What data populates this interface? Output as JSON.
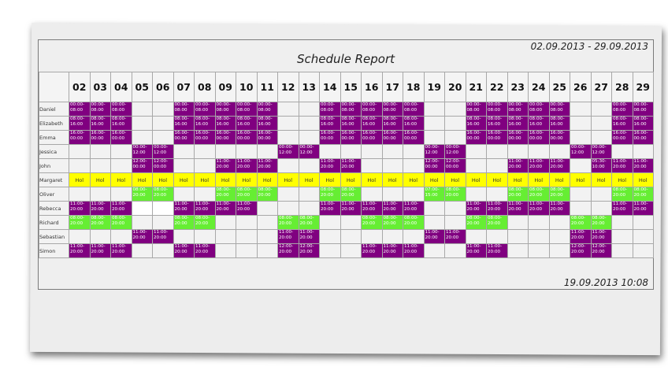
{
  "report": {
    "date_range": "02.09.2013 - 29.09.2013",
    "title": "Schedule Report",
    "generated": "19.09.2013 10:08"
  },
  "colors": {
    "shift": "#800080",
    "alt_shift": "#66ee33",
    "holiday": "#ffff00",
    "empty": "#f2f2f2"
  },
  "days": [
    "02",
    "03",
    "04",
    "05",
    "06",
    "07",
    "08",
    "09",
    "10",
    "11",
    "12",
    "13",
    "14",
    "15",
    "16",
    "17",
    "18",
    "19",
    "20",
    "21",
    "22",
    "23",
    "24",
    "25",
    "26",
    "27",
    "28",
    "29"
  ],
  "rows": [
    {
      "name": "Daniel",
      "cells": [
        "00:00-08:00",
        "00:00-08:00",
        "00:00-08:00",
        "",
        "",
        "00:00-08:00",
        "00:00-08:00",
        "00:00-08:00",
        "00:00-08:00",
        "00:00-08:00",
        "",
        "",
        "00:00-08:00",
        "00:00-08:00",
        "00:00-08:00",
        "00:00-08:00",
        "00:00-08:00",
        "",
        "",
        "00:00-08:00",
        "00:00-08:00",
        "00:00-08:00",
        "00:00-08:00",
        "00:00-08:00",
        "",
        "",
        "00:00-08:00",
        "00:00-08:00"
      ]
    },
    {
      "name": "Elizabeth",
      "cells": [
        "08:00-16:00",
        "08:00-16:00",
        "08:00-16:00",
        "",
        "",
        "08:00-16:00",
        "08:00-16:00",
        "08:00-16:00",
        "08:00-16:00",
        "08:00-16:00",
        "",
        "",
        "08:00-16:00",
        "08:00-16:00",
        "08:00-16:00",
        "08:00-16:00",
        "08:00-16:00",
        "",
        "",
        "08:00-16:00",
        "08:00-16:00",
        "08:00-16:00",
        "08:00-16:00",
        "08:00-16:00",
        "",
        "",
        "08:00-16:00",
        "08:00-16:00"
      ]
    },
    {
      "name": "Emma",
      "cells": [
        "16:00-00:00",
        "16:00-00:00",
        "16:00-00:00",
        "",
        "",
        "16:00-00:00",
        "16:00-00:00",
        "16:00-00:00",
        "16:00-00:00",
        "16:00-00:00",
        "",
        "",
        "16:00-00:00",
        "16:00-00:00",
        "16:00-00:00",
        "16:00-00:00",
        "16:00-00:00",
        "",
        "",
        "16:00-00:00",
        "16:00-00:00",
        "16:00-00:00",
        "16:00-00:00",
        "16:00-00:00",
        "",
        "",
        "16:00-00:00",
        "16:00-00:00"
      ]
    },
    {
      "name": "Jessica",
      "cells": [
        "",
        "",
        "",
        "00:00-12:00",
        "00:00-12:00",
        "",
        "",
        "",
        "",
        "",
        "00:00-12:00",
        "00:00-12:00",
        "",
        "",
        "",
        "",
        "",
        "00:00-12:00",
        "00:00-12:00",
        "",
        "",
        "",
        "",
        "",
        "00:00-12:00",
        "00:00-12:00",
        "",
        ""
      ]
    },
    {
      "name": "John",
      "cells": [
        "",
        "",
        "",
        "12:00-00:00",
        "12:00-00:00",
        "",
        "",
        "11:00-20:00",
        "11:00-20:00",
        "11:00-20:00",
        "",
        "",
        "11:00-20:00",
        "11:00-20:00",
        "",
        "",
        "",
        "12:00-00:00",
        "12:00-00:00",
        "",
        "",
        "11:00-20:00",
        "11:00-20:00",
        "11:00-20:00",
        "",
        "05:30-10:00",
        "11:00-20:00",
        "11:00-20:00"
      ]
    },
    {
      "name": "Margaret",
      "cells": [
        "Hol",
        "Hol",
        "Hol",
        "Hol",
        "Hol",
        "Hol",
        "Hol",
        "Hol",
        "Hol",
        "Hol",
        "Hol",
        "Hol",
        "Hol",
        "Hol",
        "Hol",
        "Hol",
        "Hol",
        "Hol",
        "Hol",
        "Hol",
        "Hol",
        "Hol",
        "Hol",
        "Hol",
        "Hol",
        "Hol",
        "Hol",
        "Hol"
      ]
    },
    {
      "name": "Oliver",
      "cells": [
        "",
        "",
        "",
        "08:00-20:00",
        "08:00-20:00",
        "",
        "",
        "08:00-20:00",
        "08:00-20:00",
        "08:00-20:00",
        "",
        "",
        "08:00-20:00",
        "08:00-20:00",
        "",
        "",
        "",
        "07:00-15:00",
        "08:00-20:00",
        "",
        "",
        "08:00-20:00",
        "08:00-20:00",
        "08:00-20:00",
        "",
        "",
        "08:00-20:00",
        "08:00-20:00"
      ]
    },
    {
      "name": "Rebecca",
      "cells": [
        "11:00-20:00",
        "11:00-20:00",
        "11:00-20:00",
        "",
        "",
        "11:00-20:00",
        "11:00-20:00",
        "11:00-20:00",
        "11:00-20:00",
        "",
        "",
        "",
        "11:00-20:00",
        "11:00-20:00",
        "11:00-20:00",
        "11:00-20:00",
        "11:00-20:00",
        "",
        "",
        "11:00-20:00",
        "11:00-20:00",
        "11:00-20:00",
        "11:00-20:00",
        "11:00-20:00",
        "",
        "",
        "11:00-20:00",
        "11:00-20:00"
      ]
    },
    {
      "name": "Richard",
      "cells": [
        "08:00-20:00",
        "08:00-20:00",
        "08:00-20:00",
        "",
        "",
        "08:00-20:00",
        "08:00-20:00",
        "",
        "",
        "",
        "08:00-20:00",
        "08:00-20:00",
        "",
        "",
        "08:00-20:00",
        "08:00-20:00",
        "08:00-20:00",
        "",
        "",
        "08:00-20:00",
        "08:00-20:00",
        "",
        "",
        "",
        "08:00-20:00",
        "08:00-20:00",
        "",
        ""
      ]
    },
    {
      "name": "Sebastian",
      "cells": [
        "",
        "",
        "",
        "11:00-20:00",
        "11:00-20:00",
        "",
        "",
        "",
        "",
        "",
        "11:00-20:00",
        "11:00-20:00",
        "",
        "",
        "",
        "",
        "",
        "11:00-20:00",
        "11:00-20:00",
        "",
        "",
        "",
        "",
        "",
        "11:00-20:00",
        "11:00-20:00",
        "",
        ""
      ]
    },
    {
      "name": "Simon",
      "cells": [
        "11:00-20:00",
        "11:00-20:00",
        "11:00-20:00",
        "",
        "",
        "11:00-20:00",
        "11:00-20:00",
        "",
        "",
        "",
        "12:00-20:00",
        "12:00-20:00",
        "",
        "",
        "11:00-20:00",
        "11:00-20:00",
        "11:00-20:00",
        "",
        "",
        "11:00-20:00",
        "11:00-20:00",
        "",
        "",
        "",
        "12:00-20:00",
        "12:00-20:00",
        "",
        ""
      ]
    }
  ],
  "green_cells": {
    "Oliver": "all",
    "Richard": "all"
  },
  "white_cells": {
    "Rebecca": [
      "05",
      "06"
    ]
  }
}
